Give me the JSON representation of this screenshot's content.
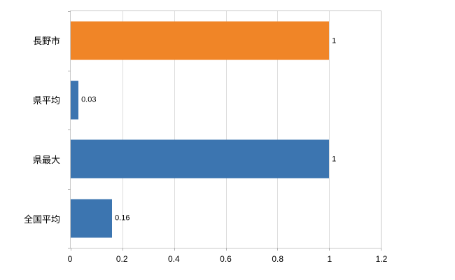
{
  "chart_data": {
    "type": "bar",
    "orientation": "horizontal",
    "title": "",
    "xlabel": "",
    "ylabel": "",
    "categories": [
      "長野市",
      "県平均",
      "県最大",
      "全国平均"
    ],
    "values": [
      1,
      0.03,
      1,
      0.16
    ],
    "value_labels": [
      "1",
      "0.03",
      "1",
      "0.16"
    ],
    "bar_colors": [
      "#F08527",
      "#3C75B0",
      "#3C75B0",
      "#3C75B0"
    ],
    "xlim": [
      0,
      1.2
    ],
    "xticks": [
      0,
      0.2,
      0.4,
      0.6,
      0.8,
      1,
      1.2
    ],
    "xtick_labels": [
      "0",
      "0.2",
      "0.4",
      "0.6",
      "0.8",
      "1",
      "1.2"
    ],
    "grid": "vertical",
    "legend": "none",
    "colors": {
      "grid": "#dcdcdc",
      "axis_border": "#c9c9c9",
      "text": "#000000",
      "background": "#ffffff"
    }
  }
}
